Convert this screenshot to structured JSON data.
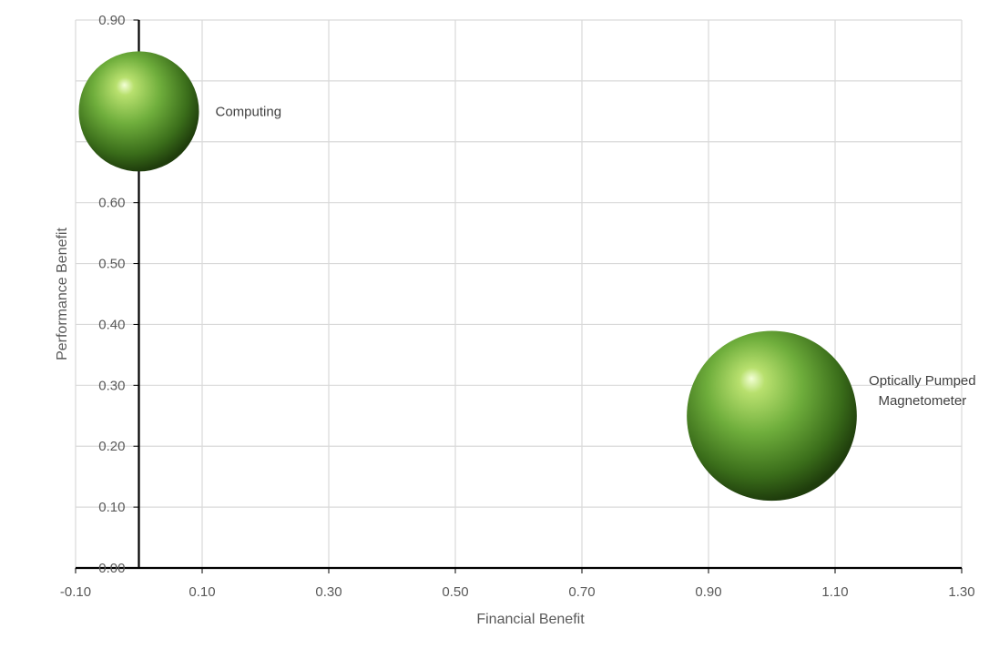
{
  "chart_data": {
    "type": "bubble",
    "title": "",
    "xlabel": "Financial Benefit",
    "ylabel": "Performance Benefit",
    "xlim": [
      -0.1,
      1.3
    ],
    "ylim": [
      0.0,
      0.9
    ],
    "xticks": [
      "-0.10",
      "0.10",
      "0.30",
      "0.50",
      "0.70",
      "0.90",
      "1.10",
      "1.30"
    ],
    "yticks": [
      "0.00",
      "0.10",
      "0.20",
      "0.30",
      "0.40",
      "0.50",
      "0.60",
      "0.70",
      "0.80",
      "0.90"
    ],
    "grid": true,
    "legend": "none",
    "bubble_color": "#70ad47",
    "points": [
      {
        "label": [
          "Computing"
        ],
        "x": 0.0,
        "y": 0.75,
        "size": 1.0
      },
      {
        "label": [
          "Optically Pumped",
          "Magnetometer"
        ],
        "x": 1.0,
        "y": 0.25,
        "size": 2.0
      }
    ]
  }
}
